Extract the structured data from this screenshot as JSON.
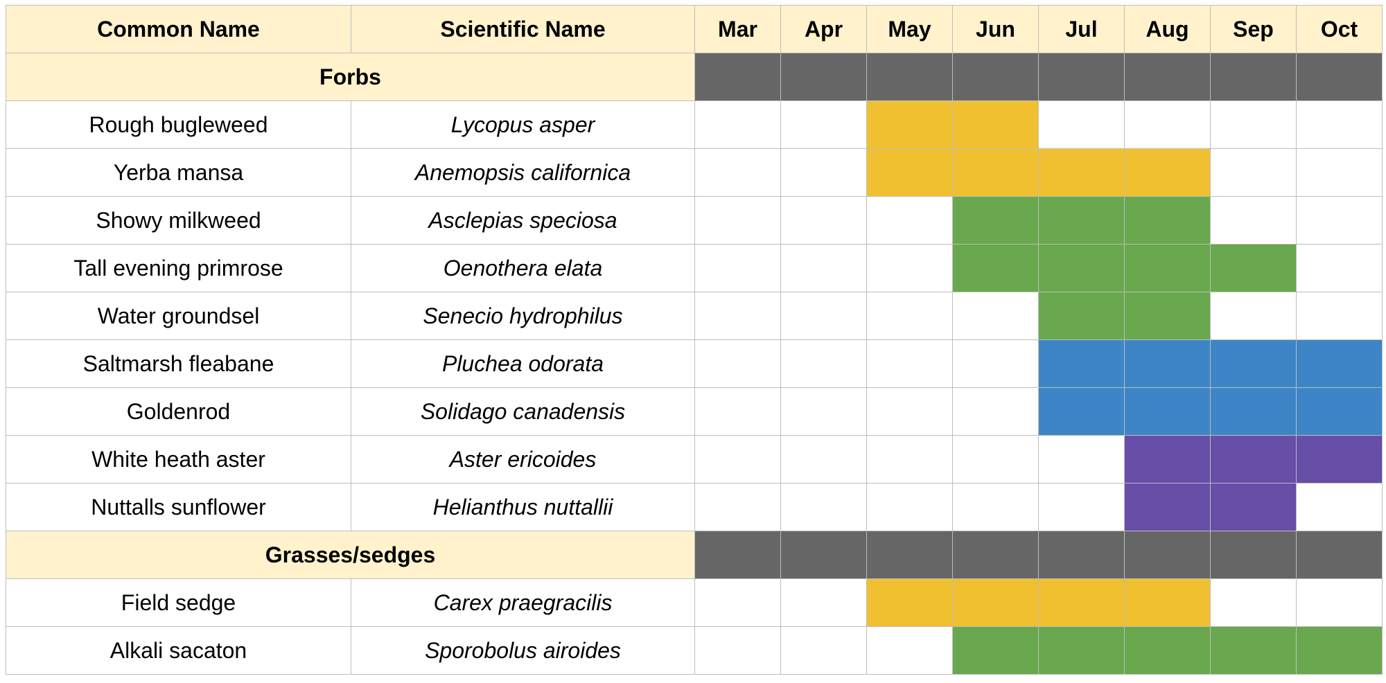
{
  "chart_data": {
    "type": "table",
    "columns": {
      "common": "Common Name",
      "scientific": "Scientific Name",
      "months": [
        "Mar",
        "Apr",
        "May",
        "Jun",
        "Jul",
        "Aug",
        "Sep",
        "Oct"
      ]
    },
    "colors": {
      "header_bg": "#fff2cc",
      "group_bar": "#666666",
      "yellow": "#f0c030",
      "green": "#6aa84f",
      "blue": "#3d85c6",
      "purple": "#674ea7"
    },
    "groups": [
      {
        "name": "Forbs",
        "rows": [
          {
            "common": "Rough bugleweed",
            "scientific": "Lycopus asper",
            "months": [
              "May",
              "Jun"
            ],
            "color": "yellow"
          },
          {
            "common": "Yerba mansa",
            "scientific": "Anemopsis californica",
            "months": [
              "May",
              "Jun",
              "Jul",
              "Aug"
            ],
            "color": "yellow"
          },
          {
            "common": "Showy milkweed",
            "scientific": "Asclepias speciosa",
            "months": [
              "Jun",
              "Jul",
              "Aug"
            ],
            "color": "green"
          },
          {
            "common": "Tall evening primrose",
            "scientific": "Oenothera elata",
            "months": [
              "Jun",
              "Jul",
              "Aug",
              "Sep"
            ],
            "color": "green"
          },
          {
            "common": "Water groundsel",
            "scientific": "Senecio hydrophilus",
            "months": [
              "Jul",
              "Aug"
            ],
            "color": "green"
          },
          {
            "common": "Saltmarsh fleabane",
            "scientific": "Pluchea odorata",
            "months": [
              "Jul",
              "Aug",
              "Sep",
              "Oct"
            ],
            "color": "blue"
          },
          {
            "common": "Goldenrod",
            "scientific": "Solidago canadensis",
            "months": [
              "Jul",
              "Aug",
              "Sep",
              "Oct"
            ],
            "color": "blue"
          },
          {
            "common": "White heath aster",
            "scientific": "Aster ericoides",
            "months": [
              "Aug",
              "Sep",
              "Oct"
            ],
            "color": "purple"
          },
          {
            "common": "Nuttalls sunflower",
            "scientific": "Helianthus nuttallii",
            "months": [
              "Aug",
              "Sep"
            ],
            "color": "purple"
          }
        ]
      },
      {
        "name": "Grasses/sedges",
        "rows": [
          {
            "common": "Field sedge",
            "scientific": "Carex praegracilis",
            "months": [
              "May",
              "Jun",
              "Jul",
              "Aug"
            ],
            "color": "yellow"
          },
          {
            "common": "Alkali sacaton",
            "scientific": "Sporobolus airoides",
            "months": [
              "Jun",
              "Jul",
              "Aug",
              "Sep",
              "Oct"
            ],
            "color": "green"
          }
        ]
      }
    ]
  }
}
